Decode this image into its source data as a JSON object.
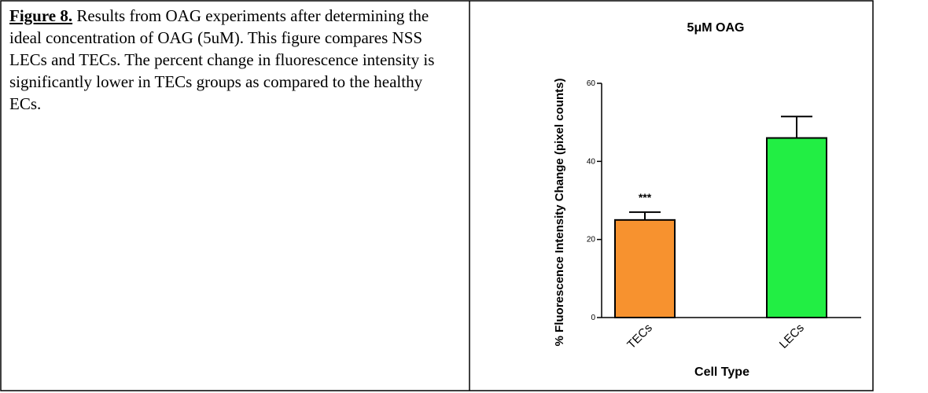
{
  "caption": {
    "label": "Figure 8.",
    "text": "Results from OAG experiments after determining the ideal concentration of OAG (5uM). This figure compares NSS LECs and TECs. The percent change in fluorescence intensity is significantly lower in TECs groups as compared to the healthy ECs."
  },
  "chart_data": {
    "type": "bar",
    "title": "5μM OAG",
    "x_label": "Cell Type",
    "y_label": "% Fluorescence Intensity Change (pixel counts)",
    "categories": [
      "TECs",
      "LECs"
    ],
    "values": [
      25,
      46
    ],
    "errors": [
      2,
      5.5
    ],
    "colors": [
      "#f7922f",
      "#22ee44"
    ],
    "annotations": [
      "***",
      null
    ],
    "ylim": [
      0,
      60
    ],
    "yticks": [
      0,
      20,
      40,
      60
    ]
  }
}
